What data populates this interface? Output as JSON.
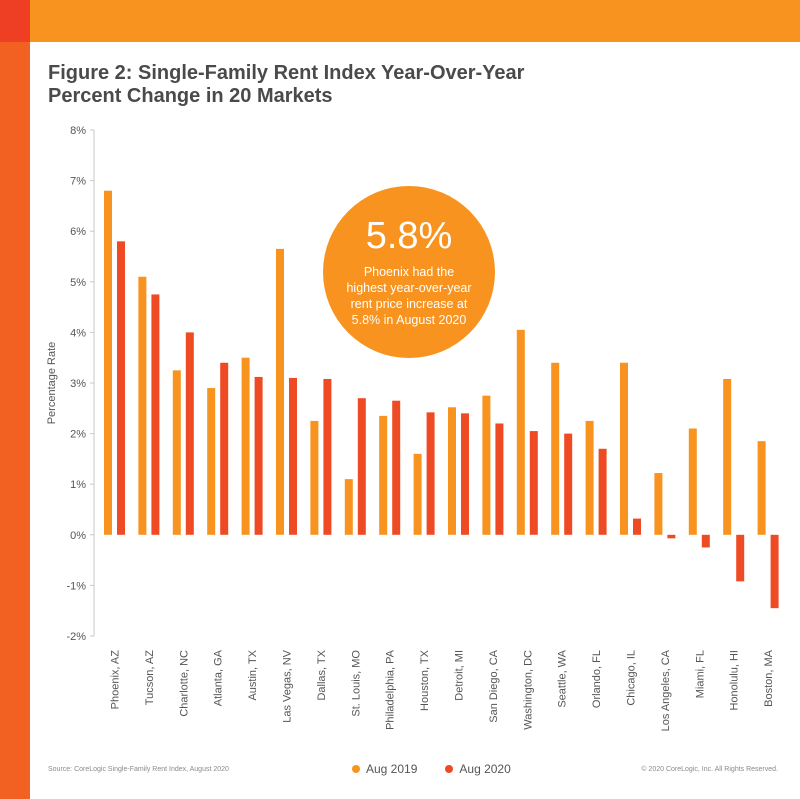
{
  "title_lines": [
    "Figure 2: Single-Family Rent Index Year-Over-Year",
    "Percent Change in 20 Markets"
  ],
  "callout": {
    "value": "5.8%",
    "text": "Phoenix had the highest year-over-year rent price increase at 5.8% in August 2020"
  },
  "footer": {
    "source": "Source: CoreLogic Single-Family Rent Index, August 2020",
    "copyright": "© 2020 CoreLogic, Inc. All Rights Reserved."
  },
  "colors": {
    "aug2019": "#f7931e",
    "aug2020": "#ee4b25",
    "top_bar": "#f7931e",
    "left_bar": "#f26122"
  },
  "chart_data": {
    "type": "bar",
    "title": "Figure 2: Single-Family Rent Index Year-Over-Year Percent Change in 20 Markets",
    "xlabel": "",
    "ylabel": "Percentage Rate",
    "ylim": [
      -2,
      8
    ],
    "yticks": [
      -2,
      -1,
      0,
      1,
      2,
      3,
      4,
      5,
      6,
      7,
      8
    ],
    "ytick_labels": [
      "-2%",
      "-1%",
      "0%",
      "1%",
      "2%",
      "3%",
      "4%",
      "5%",
      "6%",
      "7%",
      "8%"
    ],
    "grid": false,
    "legend_position": "bottom",
    "categories": [
      "Phoenix, AZ",
      "Tucson, AZ",
      "Charlotte, NC",
      "Atlanta, GA",
      "Austin, TX",
      "Las Vegas, NV",
      "Dallas, TX",
      "St. Louis, MO",
      "Philadelphia, PA",
      "Houston, TX",
      "Detroit, MI",
      "San Diego, CA",
      "Washington, DC",
      "Seattle, WA",
      "Orlando, FL",
      "Chicago, IL",
      "Los Angeles, CA",
      "Miami, FL",
      "Honolulu, HI",
      "Boston, MA"
    ],
    "series": [
      {
        "name": "Aug 2019",
        "values": [
          6.8,
          5.1,
          3.25,
          2.9,
          3.5,
          5.65,
          2.25,
          1.1,
          2.35,
          1.6,
          2.52,
          2.75,
          4.05,
          3.4,
          2.25,
          3.4,
          1.22,
          2.1,
          3.08,
          1.85
        ]
      },
      {
        "name": "Aug 2020",
        "values": [
          5.8,
          4.75,
          4.0,
          3.4,
          3.12,
          3.1,
          3.08,
          2.7,
          2.65,
          2.42,
          2.4,
          2.2,
          2.05,
          2.0,
          1.7,
          0.32,
          -0.07,
          -0.25,
          -0.92,
          -1.45
        ]
      }
    ]
  }
}
